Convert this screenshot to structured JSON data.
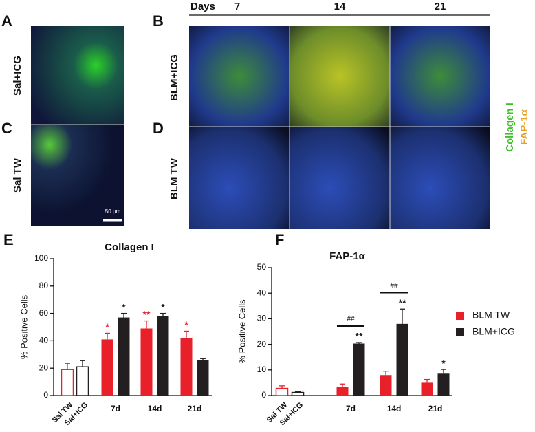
{
  "panel_labels": [
    "A",
    "B",
    "C",
    "D",
    "E",
    "F"
  ],
  "row_labels": [
    "Sal+ICG",
    "Sal TW",
    "BLM+ICG",
    "BLM TW"
  ],
  "days_header": {
    "title": "Days",
    "days": [
      "7",
      "14",
      "21"
    ]
  },
  "stain_legend": [
    {
      "text": "Collagen I",
      "color": "#3fbf2a"
    },
    {
      "text": "FAP-1α",
      "color": "#e2a12a"
    }
  ],
  "scale_bar": "50 µm",
  "chart_data": [
    {
      "type": "bar",
      "title": "Collagen I",
      "y_label": "% Positive Cells",
      "categories": [
        "Sal TW",
        "Sal+ICG",
        "7d",
        "14d",
        "21d"
      ],
      "control_values": [
        19,
        21
      ],
      "control_errors": [
        4.5,
        4.5
      ],
      "control_colors": [
        "#e8202a",
        "#231f20"
      ],
      "series": [
        {
          "name": "BLM TW",
          "color": "#e8202a",
          "values": [
            null,
            null,
            41,
            49,
            42
          ],
          "errors": [
            null,
            null,
            4.5,
            5.5,
            5
          ],
          "annotations": [
            null,
            null,
            "*",
            "**",
            "*"
          ]
        },
        {
          "name": "BLM+ICG",
          "color": "#231f20",
          "values": [
            null,
            null,
            57,
            58,
            26
          ],
          "errors": [
            null,
            null,
            3,
            2,
            1
          ],
          "annotations": [
            null,
            null,
            "*",
            "*",
            null
          ]
        }
      ],
      "ylim": [
        0,
        100
      ],
      "yticks": [
        0,
        20,
        40,
        60,
        80,
        100
      ],
      "legend": false
    },
    {
      "type": "bar",
      "title": "FAP-1α",
      "y_label": "% Positive Cells",
      "categories": [
        "Sal TW",
        "Sal+ICG",
        "7d",
        "14d",
        "21d"
      ],
      "control_values": [
        2.8,
        1.2
      ],
      "control_errors": [
        1,
        0.3
      ],
      "control_colors": [
        "#e8202a",
        "#231f20"
      ],
      "series": [
        {
          "name": "BLM TW",
          "color": "#e8202a",
          "values": [
            null,
            null,
            3.5,
            8,
            5
          ],
          "errors": [
            null,
            null,
            1,
            1.5,
            1.3
          ],
          "annotations": [
            null,
            null,
            null,
            null,
            null
          ]
        },
        {
          "name": "BLM+ICG",
          "color": "#231f20",
          "values": [
            null,
            null,
            20.3,
            28,
            8.8
          ],
          "errors": [
            null,
            null,
            0.4,
            5.8,
            1.4
          ],
          "annotations": [
            null,
            null,
            "**",
            "**",
            "*"
          ]
        }
      ],
      "brackets": [
        null,
        null,
        "##",
        "##",
        null
      ],
      "ylim": [
        0,
        50
      ],
      "yticks": [
        0,
        10,
        20,
        30,
        40,
        50
      ],
      "legend": "right"
    }
  ]
}
